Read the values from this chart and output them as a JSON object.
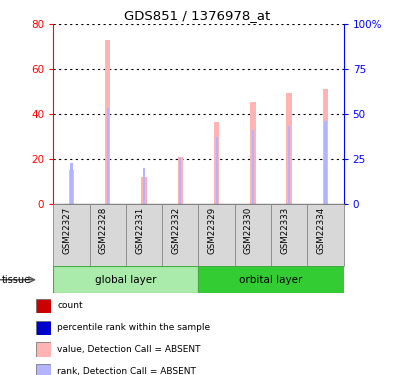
{
  "title": "GDS851 / 1376978_at",
  "samples": [
    "GSM22327",
    "GSM22328",
    "GSM22331",
    "GSM22332",
    "GSM22329",
    "GSM22330",
    "GSM22333",
    "GSM22334"
  ],
  "value_absent": [
    15.5,
    73.0,
    12.0,
    21.0,
    36.5,
    45.5,
    49.5,
    51.5
  ],
  "rank_absent": [
    18.5,
    43.0,
    16.0,
    20.5,
    30.0,
    33.0,
    35.0,
    37.0
  ],
  "left_ylim": [
    0,
    80
  ],
  "right_ylim": [
    0,
    100
  ],
  "left_yticks": [
    0,
    20,
    40,
    60,
    80
  ],
  "right_yticks": [
    0,
    25,
    50,
    75,
    100
  ],
  "right_yticklabels": [
    "0",
    "25",
    "50",
    "75",
    "100%"
  ],
  "bar_color_absent": "#ffb3b3",
  "rank_color_absent": "#b3b3ff",
  "bar_width": 0.15,
  "rank_bar_width": 0.06,
  "group1_name": "global layer",
  "group2_name": "orbital layer",
  "group1_color": "#aaeaaa",
  "group2_color": "#33cc33",
  "xtick_box_color": "#d8d8d8",
  "xtick_box_edge": "#888888",
  "legend_items": [
    {
      "color": "#cc0000",
      "label": "count"
    },
    {
      "color": "#0000cc",
      "label": "percentile rank within the sample"
    },
    {
      "color": "#ffb3b3",
      "label": "value, Detection Call = ABSENT"
    },
    {
      "color": "#b3b3ff",
      "label": "rank, Detection Call = ABSENT"
    }
  ],
  "tissue_label": "tissue"
}
